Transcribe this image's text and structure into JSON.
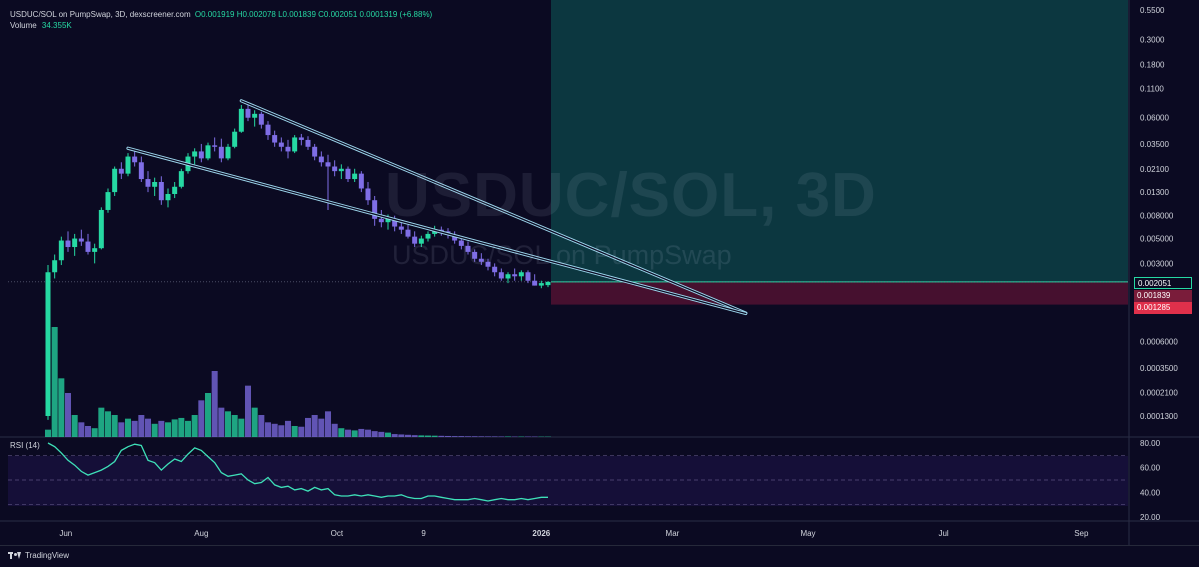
{
  "header": {
    "symbol_line": "USDUC/SOL on PumpSwap, 3D, dexscreener.com",
    "ohlc_line": "O0.001919 H0.002078 L0.001839 C0.002051 0.0001319 (+6.88%)",
    "volume_label": "Volume",
    "volume_value": "34.355K"
  },
  "watermark": {
    "main": "USDUC/SOL, 3D",
    "sub": "USDUC/SOL on PumpSwap"
  },
  "price_axis": {
    "ticks": [
      "0.5500",
      "0.3000",
      "0.1800",
      "0.1100",
      "0.06000",
      "0.03500",
      "0.02100",
      "0.01300",
      "0.008000",
      "0.005000",
      "0.003000",
      "0.0006000",
      "0.0003500",
      "0.0002100",
      "0.0001300"
    ],
    "current_price": "0.002051",
    "stop_price": "0.001839",
    "stop_price_2": "0.001285",
    "colors": {
      "current": "#0b0a22",
      "stop": "#7a1c3a",
      "stop2": "#e0304b"
    }
  },
  "time_axis": {
    "labels": [
      "Jun",
      "Aug",
      "Oct",
      "9",
      "2026",
      "Mar",
      "May",
      "Jul",
      "Sep"
    ]
  },
  "rsi": {
    "label": "RSI (14)",
    "ticks": [
      "80.00",
      "60.00",
      "40.00",
      "20.00"
    ],
    "levels": [
      70,
      50,
      30
    ]
  },
  "colors": {
    "background": "#0b0a22",
    "up": "#26d9a3",
    "down": "#7f6ee6",
    "rsi_line": "#3ee0b8",
    "long_zone": "#0d3a42",
    "short_zone": "#4a1130",
    "wedge": "#9ed8ee"
  },
  "footer": {
    "brand": "TradingView"
  },
  "chart_data": [
    {
      "type": "candlestick",
      "title": "USDUC/SOL on PumpSwap, 3D, dexscreener.com",
      "y_scale": "log",
      "ylim": [
        0.0001,
        0.55
      ],
      "x_range": [
        "2025-05-06",
        "2026-09-22"
      ],
      "series": [
        {
          "name": "Price",
          "ohlc": [
            [
              "2025-05-24",
              0.00013,
              0.0029,
              0.00012,
              0.0025
            ],
            [
              "2025-05-27",
              0.0025,
              0.0036,
              0.0022,
              0.0032
            ],
            [
              "2025-05-30",
              0.0032,
              0.0052,
              0.0029,
              0.0048
            ],
            [
              "2025-06-02",
              0.0048,
              0.0058,
              0.0038,
              0.0042
            ],
            [
              "2025-06-05",
              0.0042,
              0.0055,
              0.0035,
              0.005
            ],
            [
              "2025-06-08",
              0.005,
              0.006,
              0.0043,
              0.0047
            ],
            [
              "2025-06-11",
              0.0047,
              0.0055,
              0.0036,
              0.0038
            ],
            [
              "2025-06-14",
              0.0038,
              0.0045,
              0.003,
              0.0041
            ],
            [
              "2025-06-17",
              0.0041,
              0.0095,
              0.004,
              0.009
            ],
            [
              "2025-06-20",
              0.009,
              0.014,
              0.0085,
              0.013
            ],
            [
              "2025-06-23",
              0.013,
              0.022,
              0.012,
              0.021
            ],
            [
              "2025-06-26",
              0.021,
              0.024,
              0.017,
              0.019
            ],
            [
              "2025-06-29",
              0.019,
              0.029,
              0.018,
              0.027
            ],
            [
              "2025-07-02",
              0.027,
              0.031,
              0.022,
              0.024
            ],
            [
              "2025-07-05",
              0.024,
              0.027,
              0.016,
              0.017
            ],
            [
              "2025-07-08",
              0.017,
              0.02,
              0.013,
              0.0145
            ],
            [
              "2025-07-11",
              0.0145,
              0.0175,
              0.012,
              0.016
            ],
            [
              "2025-07-14",
              0.016,
              0.018,
              0.01,
              0.011
            ],
            [
              "2025-07-17",
              0.011,
              0.014,
              0.0095,
              0.0125
            ],
            [
              "2025-07-20",
              0.0125,
              0.016,
              0.0115,
              0.0145
            ],
            [
              "2025-07-23",
              0.0145,
              0.021,
              0.014,
              0.02
            ],
            [
              "2025-07-26",
              0.02,
              0.029,
              0.019,
              0.027
            ],
            [
              "2025-07-29",
              0.027,
              0.032,
              0.023,
              0.03
            ],
            [
              "2025-08-01",
              0.03,
              0.035,
              0.024,
              0.026
            ],
            [
              "2025-08-04",
              0.026,
              0.036,
              0.025,
              0.034
            ],
            [
              "2025-08-07",
              0.034,
              0.04,
              0.03,
              0.033
            ],
            [
              "2025-08-10",
              0.033,
              0.039,
              0.024,
              0.026
            ],
            [
              "2025-08-13",
              0.026,
              0.035,
              0.025,
              0.033
            ],
            [
              "2025-08-16",
              0.033,
              0.048,
              0.032,
              0.045
            ],
            [
              "2025-08-19",
              0.045,
              0.078,
              0.044,
              0.072
            ],
            [
              "2025-08-22",
              0.072,
              0.079,
              0.056,
              0.06
            ],
            [
              "2025-08-25",
              0.06,
              0.07,
              0.05,
              0.065
            ],
            [
              "2025-08-28",
              0.065,
              0.068,
              0.048,
              0.052
            ],
            [
              "2025-08-31",
              0.052,
              0.056,
              0.038,
              0.042
            ],
            [
              "2025-09-03",
              0.042,
              0.046,
              0.033,
              0.036
            ],
            [
              "2025-09-06",
              0.036,
              0.04,
              0.03,
              0.033
            ],
            [
              "2025-09-09",
              0.033,
              0.038,
              0.026,
              0.03
            ],
            [
              "2025-09-12",
              0.03,
              0.042,
              0.029,
              0.04
            ],
            [
              "2025-09-15",
              0.04,
              0.043,
              0.034,
              0.038
            ],
            [
              "2025-09-18",
              0.038,
              0.041,
              0.031,
              0.033
            ],
            [
              "2025-09-21",
              0.033,
              0.035,
              0.025,
              0.027
            ],
            [
              "2025-09-24",
              0.027,
              0.03,
              0.022,
              0.024
            ],
            [
              "2025-09-27",
              0.024,
              0.028,
              0.009,
              0.022
            ],
            [
              "2025-09-30",
              0.022,
              0.025,
              0.018,
              0.02
            ],
            [
              "2025-10-03",
              0.02,
              0.023,
              0.017,
              0.021
            ],
            [
              "2025-10-06",
              0.021,
              0.022,
              0.016,
              0.017
            ],
            [
              "2025-10-09",
              0.017,
              0.021,
              0.016,
              0.019
            ],
            [
              "2025-10-12",
              0.019,
              0.02,
              0.013,
              0.014
            ],
            [
              "2025-10-15",
              0.014,
              0.016,
              0.01,
              0.011
            ],
            [
              "2025-10-18",
              0.011,
              0.012,
              0.0065,
              0.0075
            ],
            [
              "2025-10-21",
              0.0075,
              0.009,
              0.0063,
              0.007
            ],
            [
              "2025-10-24",
              0.007,
              0.0082,
              0.006,
              0.0075
            ],
            [
              "2025-10-27",
              0.0075,
              0.008,
              0.0058,
              0.0064
            ],
            [
              "2025-10-30",
              0.0064,
              0.0072,
              0.0055,
              0.006
            ],
            [
              "2025-11-02",
              0.006,
              0.0066,
              0.005,
              0.0052
            ],
            [
              "2025-11-05",
              0.0052,
              0.0058,
              0.0042,
              0.0045
            ],
            [
              "2025-11-08",
              0.0045,
              0.0053,
              0.0042,
              0.005
            ],
            [
              "2025-11-11",
              0.005,
              0.0058,
              0.0047,
              0.0055
            ],
            [
              "2025-11-14",
              0.0055,
              0.0065,
              0.0052,
              0.006
            ],
            [
              "2025-11-17",
              0.006,
              0.0064,
              0.0053,
              0.0058
            ],
            [
              "2025-11-20",
              0.0058,
              0.0062,
              0.005,
              0.0054
            ],
            [
              "2025-11-23",
              0.0054,
              0.0058,
              0.0045,
              0.0048
            ],
            [
              "2025-11-26",
              0.0048,
              0.0052,
              0.004,
              0.0043
            ],
            [
              "2025-11-29",
              0.0043,
              0.0047,
              0.0036,
              0.0038
            ],
            [
              "2025-12-02",
              0.0038,
              0.004,
              0.0031,
              0.0033
            ],
            [
              "2025-12-05",
              0.0033,
              0.0037,
              0.0029,
              0.0031
            ],
            [
              "2025-12-08",
              0.0031,
              0.0033,
              0.0026,
              0.0028
            ],
            [
              "2025-12-11",
              0.0028,
              0.003,
              0.0023,
              0.0025
            ],
            [
              "2025-12-14",
              0.0025,
              0.0027,
              0.0021,
              0.0022
            ],
            [
              "2025-12-17",
              0.0022,
              0.0025,
              0.002,
              0.0024
            ],
            [
              "2025-12-20",
              0.0024,
              0.0027,
              0.0021,
              0.0023
            ],
            [
              "2025-12-23",
              0.0023,
              0.0026,
              0.0021,
              0.0025
            ],
            [
              "2025-12-26",
              0.0025,
              0.0026,
              0.002,
              0.0021
            ],
            [
              "2025-12-29",
              0.0021,
              0.0024,
              0.0019,
              0.0019
            ],
            [
              "2026-01-01",
              0.0019,
              0.0021,
              0.0018,
              0.002
            ],
            [
              "2026-01-04",
              0.001919,
              0.002078,
              0.001839,
              0.002051
            ]
          ]
        },
        {
          "name": "Volume",
          "values": [
            100,
            1500,
            800,
            600,
            300,
            200,
            150,
            120,
            400,
            350,
            300,
            200,
            250,
            220,
            300,
            250,
            180,
            220,
            200,
            240,
            260,
            220,
            300,
            500,
            600,
            900,
            400,
            350,
            300,
            250,
            700,
            400,
            300,
            200,
            180,
            160,
            220,
            150,
            140,
            260,
            300,
            250,
            350,
            180,
            120,
            100,
            90,
            110,
            100,
            80,
            70,
            60,
            40,
            35,
            30,
            25,
            22,
            20,
            18,
            16,
            14,
            12,
            12,
            10,
            10,
            9,
            8,
            8,
            7,
            7,
            6,
            6,
            6,
            6,
            5,
            5
          ]
        },
        {
          "name": "RSI (14)",
          "values": [
            80,
            77,
            72,
            66,
            62,
            57,
            54,
            56,
            58,
            61,
            65,
            74,
            77,
            79,
            78,
            66,
            64,
            58,
            63,
            67,
            65,
            71,
            76,
            74,
            69,
            64,
            56,
            53,
            54,
            55,
            50,
            47,
            48,
            52,
            46,
            44,
            45,
            42,
            43,
            41,
            44,
            42,
            43,
            38,
            37,
            37,
            38,
            37,
            38,
            37,
            36,
            37,
            37,
            38,
            36,
            35,
            35,
            37,
            37,
            36,
            35,
            34,
            34,
            34,
            35,
            34,
            33,
            34,
            35,
            34,
            34,
            35,
            34,
            35,
            36,
            36
          ]
        }
      ],
      "annotations": {
        "falling_wedge": "upper line from 2025-08-19 high to 2026-04-03; lower line from 2025-06-29 high to 2026-04-03",
        "long_position": "entry 0.002051, target 0.5500+, stop 0.001285"
      }
    }
  ]
}
